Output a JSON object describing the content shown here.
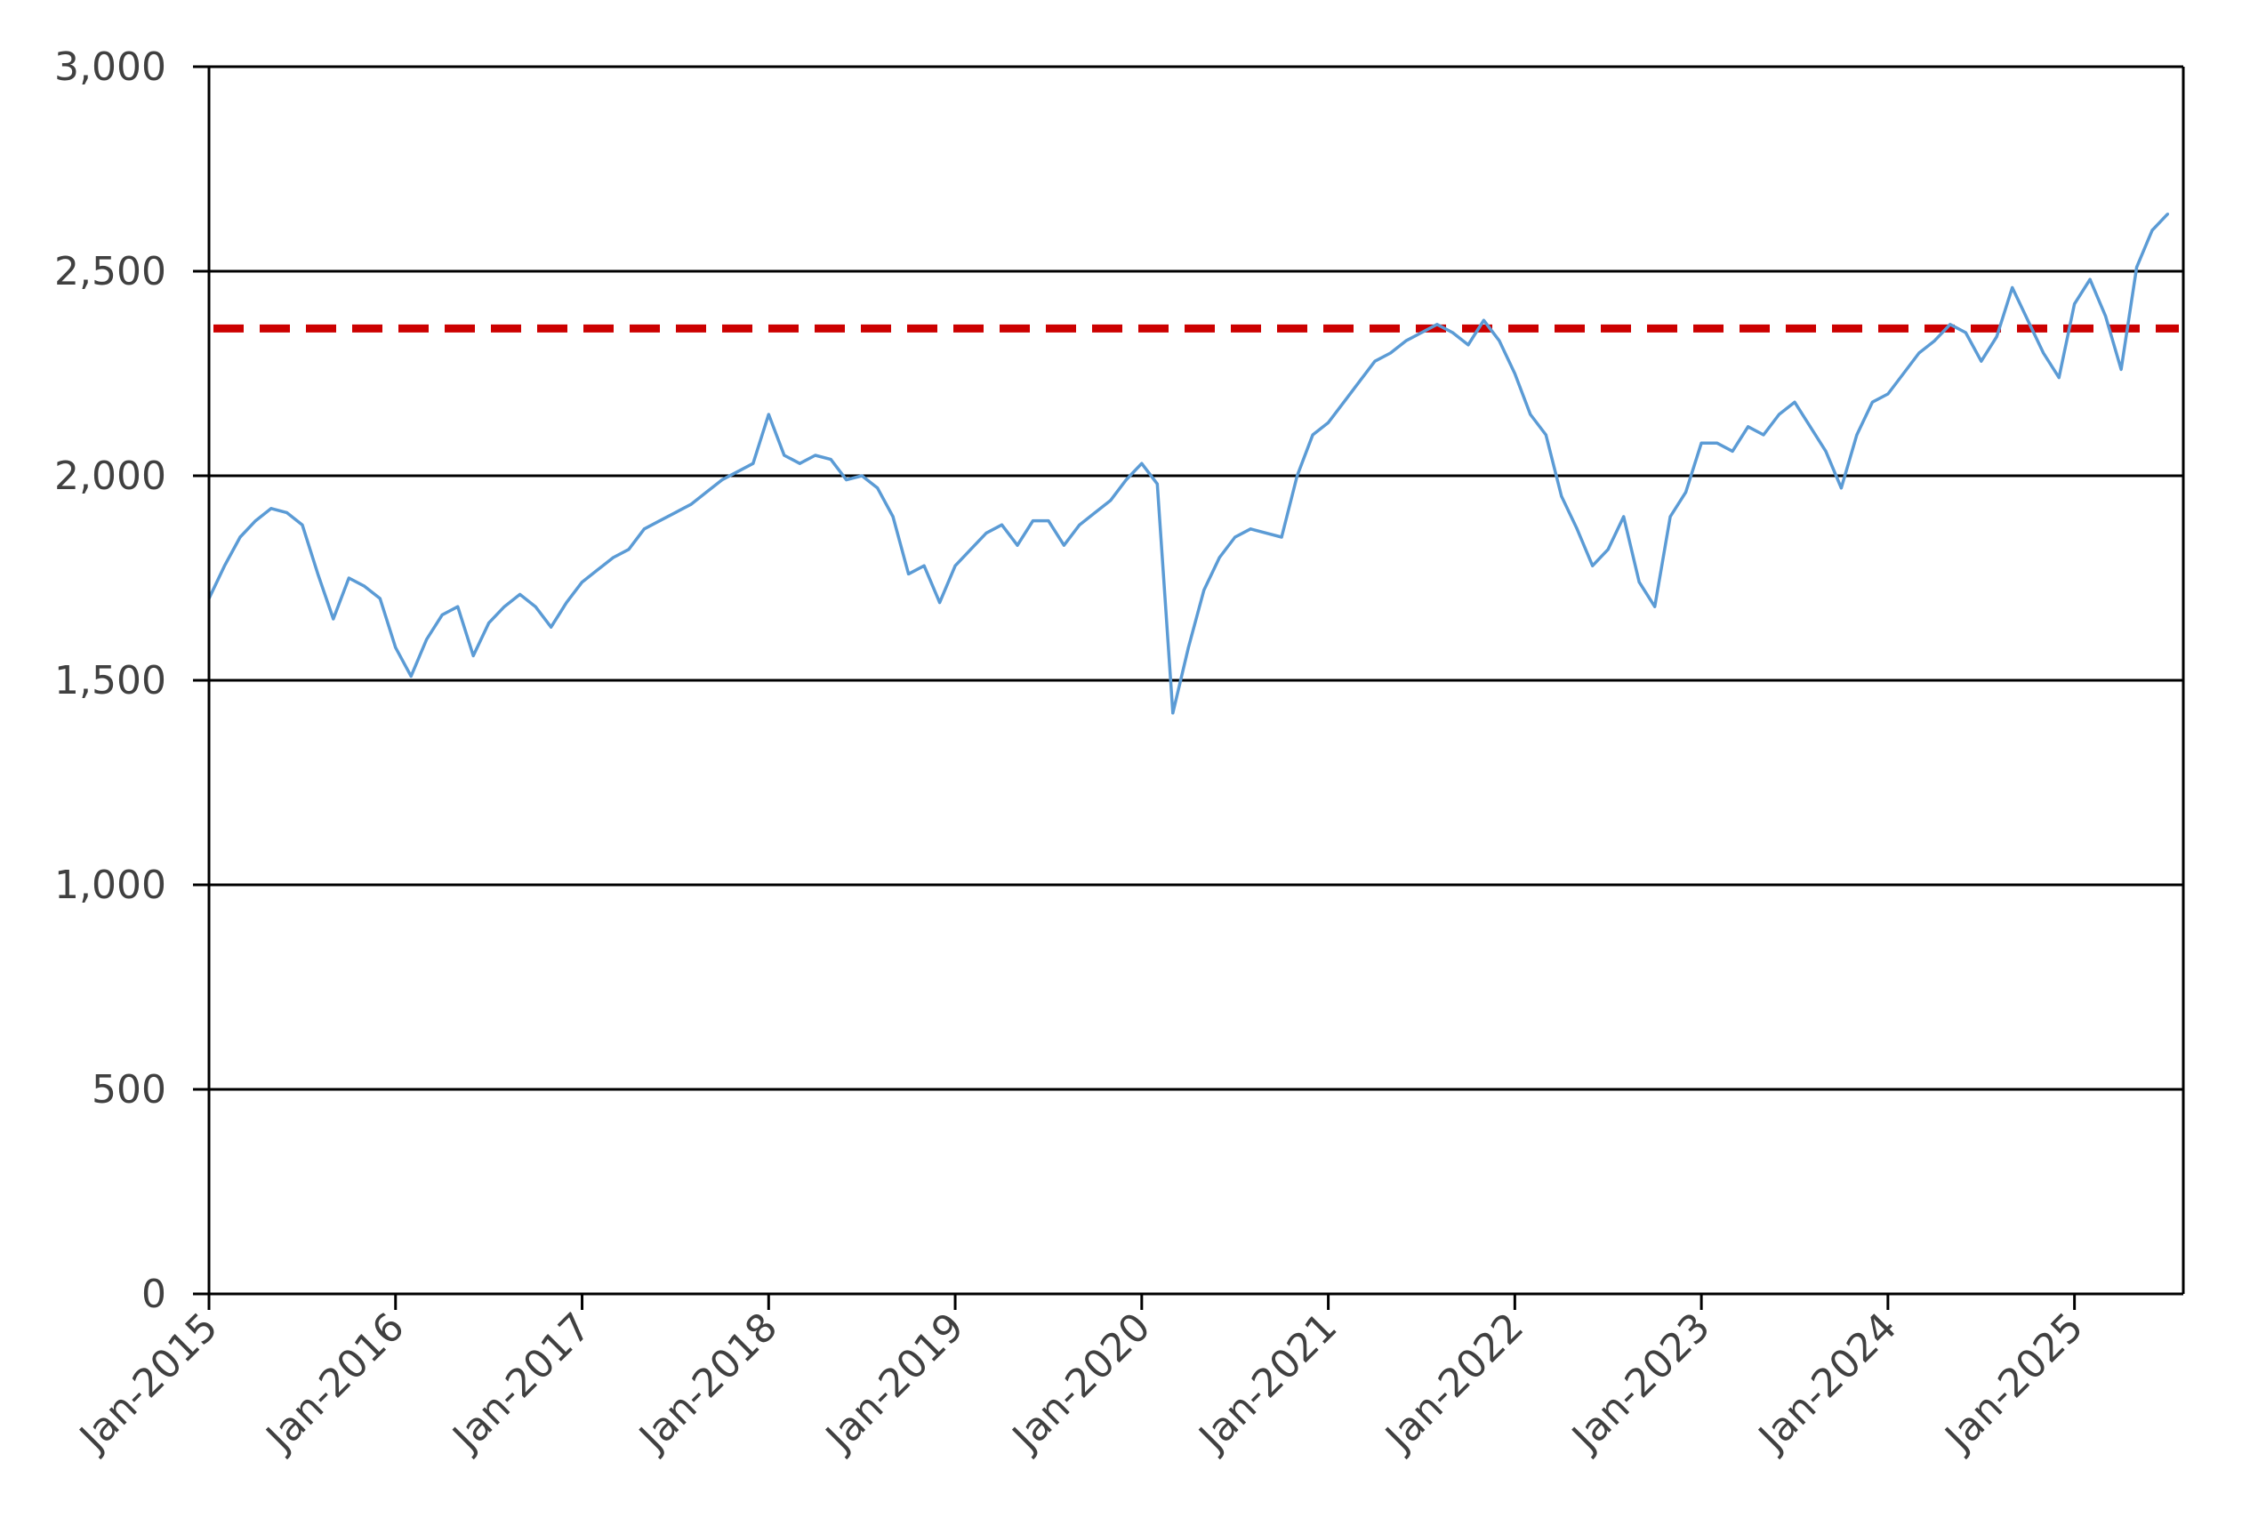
{
  "chart_data": {
    "type": "line",
    "title": "",
    "xlabel": "",
    "ylabel": "",
    "ylim": [
      0,
      3000
    ],
    "xlim": [
      "2015-01",
      "2025-08"
    ],
    "y_ticks": [
      0,
      500,
      1000,
      1500,
      2000,
      2500,
      3000
    ],
    "y_tick_labels": [
      "0",
      "500",
      "1,000",
      "1,500",
      "2,000",
      "2,500",
      "3,000"
    ],
    "x_tick_labels": [
      "Jan-2015",
      "Jan-2016",
      "Jan-2017",
      "Jan-2018",
      "Jan-2019",
      "Jan-2020",
      "Jan-2021",
      "Jan-2022",
      "Jan-2023",
      "Jan-2024",
      "Jan-2025"
    ],
    "grid": "horizontal",
    "legend": "none",
    "series": [
      {
        "color": "#5b9bd5",
        "x": [
          "2015-01",
          "2015-02",
          "2015-03",
          "2015-04",
          "2015-05",
          "2015-06",
          "2015-07",
          "2015-08",
          "2015-09",
          "2015-10",
          "2015-11",
          "2015-12",
          "2016-01",
          "2016-02",
          "2016-03",
          "2016-04",
          "2016-05",
          "2016-06",
          "2016-07",
          "2016-08",
          "2016-09",
          "2016-10",
          "2016-11",
          "2016-12",
          "2017-01",
          "2017-02",
          "2017-03",
          "2017-04",
          "2017-05",
          "2017-06",
          "2017-07",
          "2017-08",
          "2017-09",
          "2017-10",
          "2017-11",
          "2017-12",
          "2018-01",
          "2018-02",
          "2018-03",
          "2018-04",
          "2018-05",
          "2018-06",
          "2018-07",
          "2018-08",
          "2018-09",
          "2018-10",
          "2018-11",
          "2018-12",
          "2019-01",
          "2019-02",
          "2019-03",
          "2019-04",
          "2019-05",
          "2019-06",
          "2019-07",
          "2019-08",
          "2019-09",
          "2019-10",
          "2019-11",
          "2019-12",
          "2020-01",
          "2020-02",
          "2020-03",
          "2020-04",
          "2020-05",
          "2020-06",
          "2020-07",
          "2020-08",
          "2020-09",
          "2020-10",
          "2020-11",
          "2020-12",
          "2021-01",
          "2021-02",
          "2021-03",
          "2021-04",
          "2021-05",
          "2021-06",
          "2021-07",
          "2021-08",
          "2021-09",
          "2021-10",
          "2021-11",
          "2021-12",
          "2022-01",
          "2022-02",
          "2022-03",
          "2022-04",
          "2022-05",
          "2022-06",
          "2022-07",
          "2022-08",
          "2022-09",
          "2022-10",
          "2022-11",
          "2022-12",
          "2023-01",
          "2023-02",
          "2023-03",
          "2023-04",
          "2023-05",
          "2023-06",
          "2023-07",
          "2023-08",
          "2023-09",
          "2023-10",
          "2023-11",
          "2023-12",
          "2024-01",
          "2024-02",
          "2024-03",
          "2024-04",
          "2024-05",
          "2024-06",
          "2024-07",
          "2024-08",
          "2024-09",
          "2024-10",
          "2024-11",
          "2024-12",
          "2025-01",
          "2025-02",
          "2025-03",
          "2025-04",
          "2025-05",
          "2025-06",
          "2025-07"
        ],
        "values": [
          1700,
          1780,
          1850,
          1890,
          1920,
          1910,
          1880,
          1760,
          1650,
          1750,
          1730,
          1700,
          1580,
          1510,
          1600,
          1660,
          1680,
          1560,
          1640,
          1680,
          1710,
          1680,
          1630,
          1690,
          1740,
          1770,
          1800,
          1820,
          1870,
          1890,
          1910,
          1930,
          1960,
          1990,
          2010,
          2030,
          2150,
          2050,
          2030,
          2050,
          2040,
          1990,
          2000,
          1970,
          1900,
          1760,
          1780,
          1690,
          1780,
          1820,
          1860,
          1880,
          1830,
          1890,
          1890,
          1830,
          1880,
          1910,
          1940,
          1990,
          2030,
          1980,
          1420,
          1580,
          1720,
          1800,
          1850,
          1870,
          1860,
          1850,
          2000,
          2100,
          2130,
          2180,
          2230,
          2280,
          2300,
          2330,
          2350,
          2370,
          2350,
          2320,
          2380,
          2330,
          2250,
          2150,
          2100,
          1950,
          1870,
          1780,
          1820,
          1900,
          1740,
          1680,
          1900,
          1960,
          2080,
          2080,
          2060,
          2120,
          2100,
          2150,
          2180,
          2120,
          2060,
          1970,
          2100,
          2180,
          2200,
          2250,
          2300,
          2330,
          2370,
          2350,
          2280,
          2340,
          2460,
          2380,
          2300,
          2240,
          2420,
          2480,
          2390,
          2260,
          2510,
          2600,
          2640
        ]
      }
    ],
    "reference_line": {
      "value": 2360,
      "color": "#cc0000",
      "style": "dashed"
    }
  }
}
